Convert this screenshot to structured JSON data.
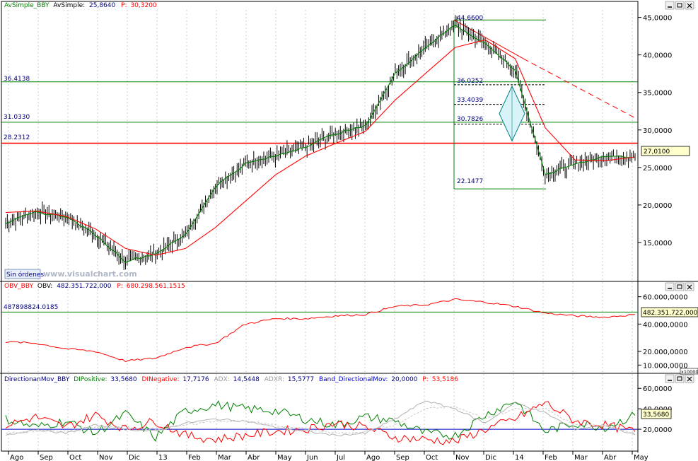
{
  "main_panel": {
    "header": {
      "name": "AvSimple_BBY",
      "name2": "AvSimple:",
      "value": "25,8640",
      "p_label": "P:",
      "p_value": "30,3200"
    },
    "level_labels": [
      "36.4138",
      "31.0330",
      "28.2312"
    ],
    "fib_labels": [
      "44.6600",
      "36.0252",
      "33.4039",
      "30.7826",
      "22.1477"
    ],
    "last_price": "27,0100",
    "yticks": [
      "45,0000",
      "40,0000",
      "35,0000",
      "30,0000",
      "25,0000",
      "20,0000",
      "15,0000"
    ],
    "status_button": "Sin órdenes",
    "watermark": "www.visualchart.com"
  },
  "obv_panel": {
    "header": {
      "name": "OBV_BBY",
      "name2": "OBV:",
      "value": "482.351.722,000",
      "p_label": "P:",
      "p_value": "680.298.561,1515"
    },
    "level_label": "487898824.0185",
    "last_value": "482.351.722,0000",
    "yticks": [
      "60.000,0000",
      "40.000,0000",
      "20.000,0000",
      "10.000,0000"
    ],
    "scale_tag": "x10000"
  },
  "dmi_panel": {
    "header": {
      "name": "DirectionanMov_BBY",
      "dip_label": "DIPositive:",
      "dip_value": "33,5680",
      "din_label": "DINegative:",
      "din_value": "17,7176",
      "adx_label": "ADX:",
      "adx_value": "14,5448",
      "adxr_label": "ADXR:",
      "adxr_value": "15,5777",
      "band_label": "Band_DirectionalMov:",
      "band_value": "20,0000",
      "p_label": "P:",
      "p_value": "53,5186"
    },
    "last_value": "33,5680",
    "yticks": [
      "60,0000",
      "40,0000",
      "20,0000"
    ]
  },
  "x_axis": {
    "labels": [
      "Ago",
      "Sep",
      "Oct",
      "Nov",
      "Dic",
      "13",
      "Feb",
      "Mar",
      "Abr",
      "May",
      "Jun",
      "Jul",
      "Ago",
      "Sep",
      "Oct",
      "Nov",
      "Dic",
      "14",
      "Feb",
      "Mar",
      "Abr",
      "May"
    ]
  },
  "window_controls": [
    "minimize",
    "maximize",
    "close"
  ],
  "colors": {
    "price": "#000000",
    "sma_fast": "#008000",
    "sma_slow": "#ff0000",
    "level_line": "#008000",
    "support": "#ff0000",
    "obv": "#ff0000",
    "adx": "#b0b0b0",
    "adxr": "#c8c8c8",
    "band": "#0000c8",
    "label_blue": "#000080"
  },
  "chart_data": [
    {
      "type": "line",
      "series": [
        {
          "name": "AvSimple_BBY",
          "values": [
            17.6,
            19.0,
            18.5,
            16.0,
            12.5,
            13.5,
            16.0,
            22.5,
            25.5,
            26.5,
            27.8,
            29.5,
            30.5,
            37.5,
            41.0,
            44.0,
            41.5,
            38.0,
            24.0,
            25.5,
            26.5,
            26.4
          ]
        },
        {
          "values": [
            19.0,
            19.2,
            18.5,
            16.8,
            14.2,
            13.3,
            14.2,
            17.0,
            20.5,
            24.0,
            26.5,
            28.2,
            29.8,
            34.0,
            37.5,
            41.0,
            42.0,
            39.5,
            30.3,
            26.0,
            25.9,
            26.4
          ]
        }
      ],
      "hlines": [
        36.4138,
        31.033,
        28.2312
      ],
      "fib_levels": [
        44.66,
        36.0252,
        33.4039,
        30.7826,
        22.1477
      ],
      "last": 27.01,
      "ylim": [
        10,
        46
      ]
    },
    {
      "type": "line",
      "series": [
        {
          "name": "OBV_BBY",
          "values": [
            27,
            26,
            22,
            20,
            13,
            15,
            23,
            26,
            40,
            44,
            44,
            46,
            47,
            53,
            54,
            58,
            56,
            53,
            48,
            46,
            45,
            47
          ]
        }
      ],
      "hline": 48.78,
      "last": 48.24,
      "ylim": [
        5,
        65
      ]
    },
    {
      "type": "line",
      "series": [
        {
          "name": "DIPositive",
          "values": [
            30,
            22,
            28,
            16,
            35,
            12,
            38,
            44,
            40,
            38,
            30,
            24,
            32,
            28,
            16,
            14,
            34,
            48,
            18,
            26,
            22,
            33.6
          ]
        },
        {
          "name": "DINegative",
          "values": [
            24,
            32,
            22,
            34,
            20,
            28,
            14,
            10,
            14,
            18,
            20,
            26,
            22,
            12,
            10,
            8,
            20,
            30,
            46,
            28,
            24,
            17.7
          ]
        },
        {
          "name": "ADX",
          "values": [
            14,
            20,
            16,
            24,
            20,
            18,
            26,
            30,
            28,
            22,
            18,
            14,
            16,
            30,
            48,
            40,
            26,
            46,
            36,
            20,
            24,
            14.5
          ]
        },
        {
          "name": "ADXR",
          "values": [
            16,
            18,
            18,
            22,
            22,
            20,
            24,
            28,
            28,
            24,
            20,
            16,
            18,
            24,
            40,
            42,
            30,
            40,
            40,
            24,
            24,
            15.6
          ]
        }
      ],
      "band": 20,
      "ylim": [
        0,
        65
      ]
    }
  ]
}
